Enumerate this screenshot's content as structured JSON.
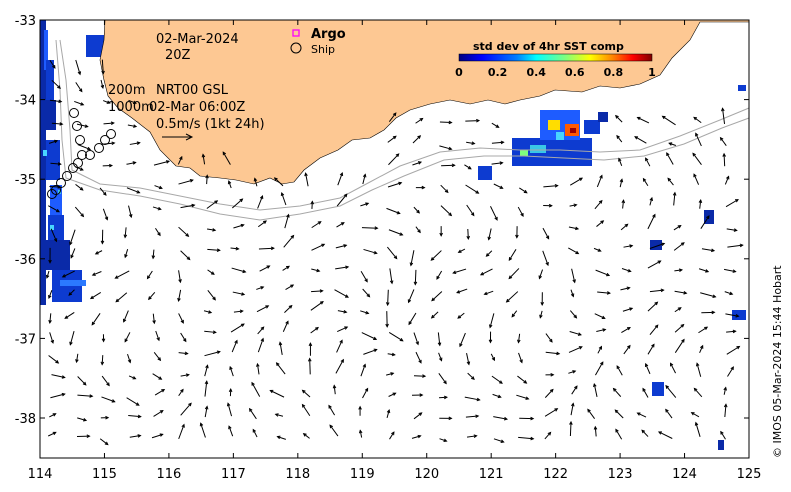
{
  "map": {
    "date": "02-Mar-2024",
    "hour": "20Z",
    "legend_argo": "Argo",
    "legend_ship": "Ship",
    "depth_line1": "200m",
    "depth_line2": "1000m",
    "product": "NRT00 GSL",
    "product_time": "02-Mar 06:00Z",
    "scale_arrow_label": "0.5m/s (1kt 24h)",
    "credit": "© IMOS 05-Mar-2024 15:44 Hobart",
    "colorbar": {
      "title": "std dev of 4hr SST comp",
      "ticks": [
        "0",
        "0.2",
        "0.4",
        "0.6",
        "0.8",
        "1"
      ]
    },
    "x_axis": {
      "ticks": [
        "114",
        "115",
        "116",
        "117",
        "118",
        "119",
        "120",
        "121",
        "122",
        "123",
        "124",
        "125"
      ]
    },
    "y_axis": {
      "ticks": [
        "-33",
        "-34",
        "-35",
        "-36",
        "-37",
        "-38"
      ]
    },
    "colors": {
      "land": "#fdc893",
      "argo_marker": "#ff00ff",
      "isobath": "#a8a8a8",
      "arrow": "#000000",
      "colormap": [
        "#00007f",
        "#0000ff",
        "#007fff",
        "#00ffff",
        "#7fff7f",
        "#ffff00",
        "#ff7f00",
        "#ff0000",
        "#7f0000"
      ]
    }
  }
}
